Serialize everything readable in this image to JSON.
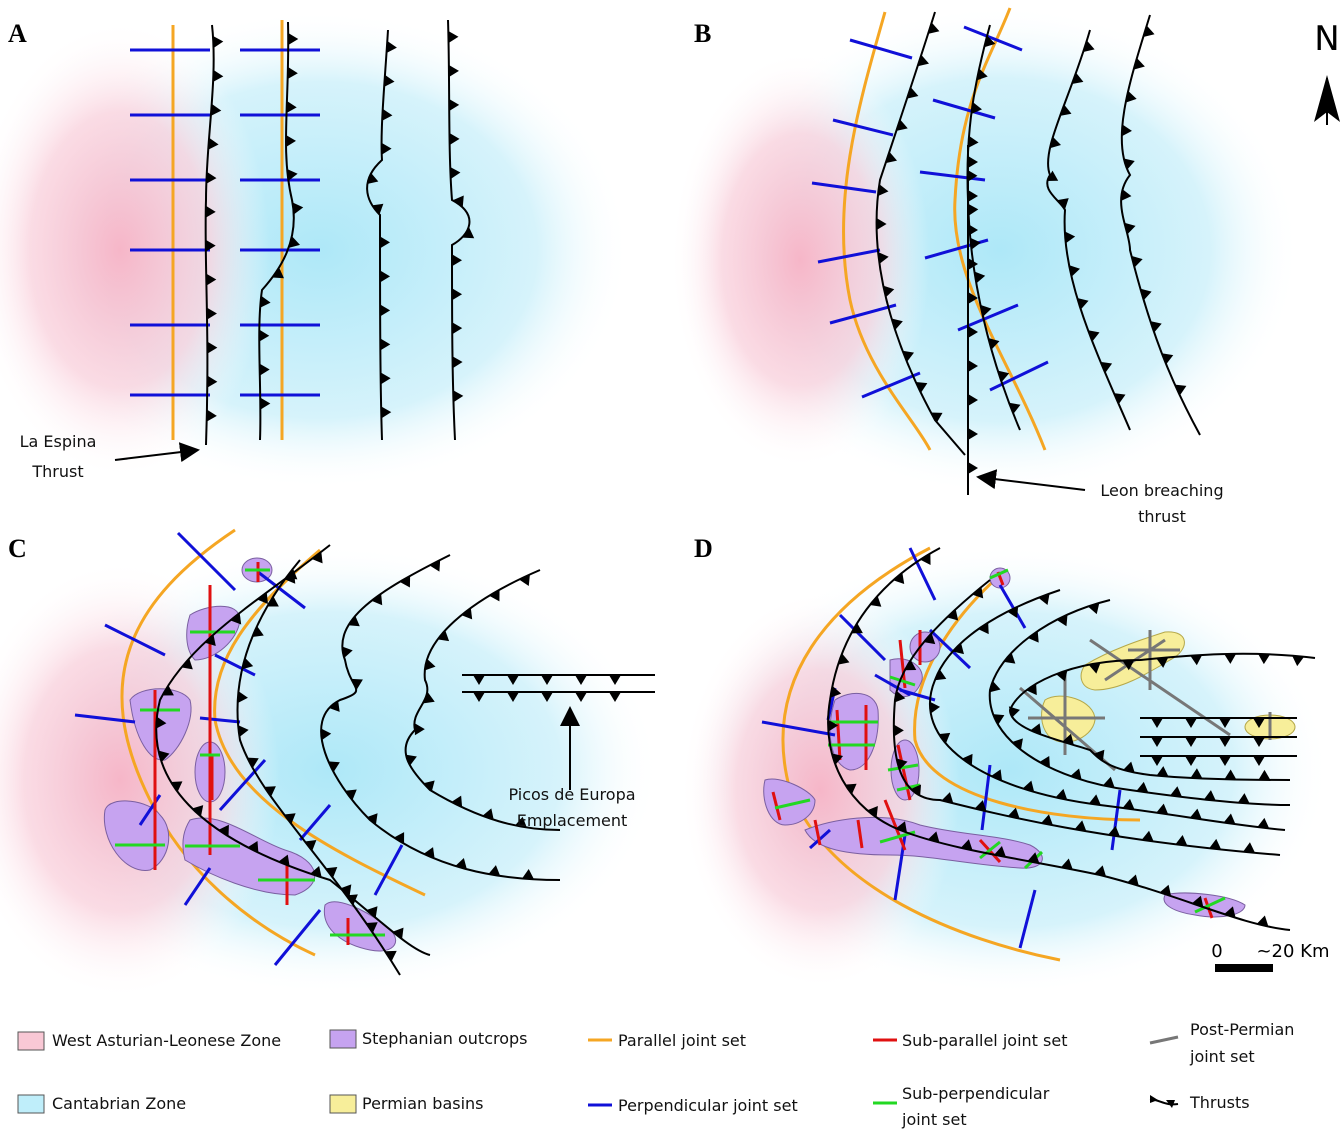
{
  "panels": [
    "A",
    "B",
    "C",
    "D"
  ],
  "north": "N",
  "annotations": {
    "la_espina": [
      "La Espina",
      "Thrust"
    ],
    "leon": [
      "Leon breaching",
      "thrust"
    ],
    "picos": [
      "Picos de Europa",
      "Emplacement"
    ]
  },
  "scale": {
    "start": "0",
    "end": "~20 Km"
  },
  "legend": [
    [
      "West Asturian-Leonese Zone"
    ],
    [
      "Stephanian outcrops"
    ],
    [
      "Parallel joint set"
    ],
    [
      "Sub-parallel joint set"
    ],
    [
      "Post-Permian",
      "joint set"
    ],
    [
      "Cantabrian Zone"
    ],
    [
      "Permian basins"
    ],
    [
      "Perpendicular joint set"
    ],
    [
      "Sub-perpendicular",
      "joint set"
    ],
    [
      "Thrusts"
    ]
  ]
}
